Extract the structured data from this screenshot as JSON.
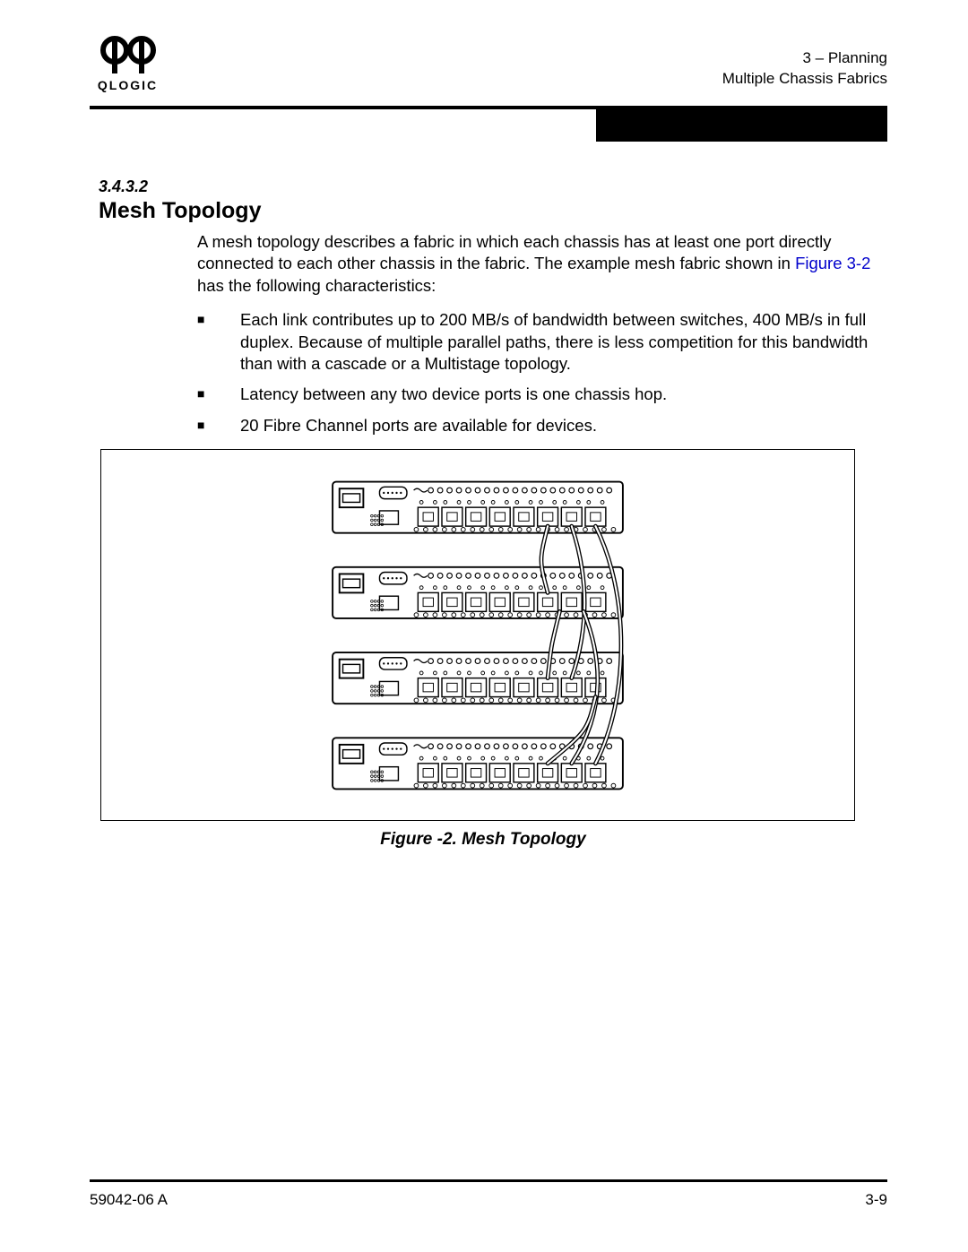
{
  "header": {
    "logo_text": "QLOGIC",
    "chapter": "3 – Planning",
    "section": "Multiple Chassis Fabrics"
  },
  "section_number": "3.4.3.2",
  "section_title": "Mesh Topology",
  "intro_pre": "A mesh topology describes a fabric in which each chassis has at least one port directly connected to each other chassis in the fabric. The example mesh fabric shown in ",
  "intro_link": "Figure 3-2",
  "intro_post": " has the following characteristics:",
  "bullets": [
    "Each link contributes up to 200 MB/s of bandwidth between switches, 400 MB/s in full duplex. Because of multiple parallel paths, there is less competition for this bandwidth than with a cascade or a Multistage topology.",
    "Latency between any two device ports is one chassis hop.",
    "20 Fibre Channel ports are available for devices."
  ],
  "figure": {
    "caption": "Figure -2.  Mesh Topology",
    "chassis_count": 4,
    "stroke": "#000000",
    "fill": "#ffffff",
    "chassis_y": [
      30,
      130,
      230,
      330
    ],
    "chassis_w": 340,
    "chassis_h": 60,
    "ports_per_row": 8
  },
  "footer": {
    "doc_id": "59042-06  A",
    "page_num": "3-9"
  },
  "colors": {
    "text": "#000000",
    "link": "#0000cc",
    "rule": "#000000",
    "bg": "#ffffff"
  }
}
